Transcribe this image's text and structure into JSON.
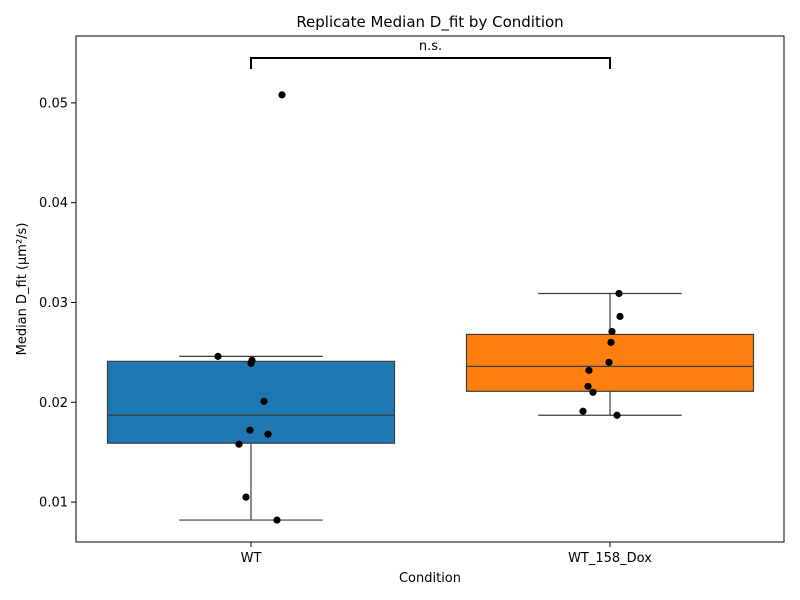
{
  "chart_data": {
    "type": "box",
    "title": "Replicate Median D_fit by Condition",
    "xlabel": "Condition",
    "ylabel": "Median D_fit (µm²/s)",
    "categories": [
      "WT",
      "WT_158_Dox"
    ],
    "ylim": [
      0.006,
      0.0567
    ],
    "yticks": [
      0.01,
      0.02,
      0.03,
      0.04,
      0.05
    ],
    "ytick_labels": [
      "0.01",
      "0.02",
      "0.03",
      "0.04",
      "0.05"
    ],
    "grid": false,
    "colors": {
      "WT": "#1f77b4",
      "WT_158_Dox": "#ff7f0e",
      "points": "#000000",
      "edge": "#3d3d3d"
    },
    "boxes": [
      {
        "category": "WT",
        "whisker_low": 0.0082,
        "q1": 0.0159,
        "median": 0.0187,
        "q3": 0.0241,
        "whisker_high": 0.0246
      },
      {
        "category": "WT_158_Dox",
        "whisker_low": 0.0187,
        "q1": 0.0211,
        "median": 0.0236,
        "q3": 0.0268,
        "whisker_high": 0.0309
      }
    ],
    "points": [
      {
        "category": "WT",
        "values": [
          0.0508,
          0.0246,
          0.0242,
          0.0239,
          0.0201,
          0.0172,
          0.0168,
          0.0158,
          0.0105,
          0.0082
        ],
        "jitter": [
          0.31,
          -0.33,
          0.01,
          0.0,
          0.13,
          -0.01,
          0.17,
          -0.12,
          -0.05,
          0.26
        ]
      },
      {
        "category": "WT_158_Dox",
        "values": [
          0.0309,
          0.0286,
          0.0271,
          0.026,
          0.024,
          0.0232,
          0.0216,
          0.021,
          0.0191,
          0.0187
        ],
        "jitter": [
          0.09,
          0.1,
          0.02,
          0.01,
          -0.01,
          -0.21,
          -0.22,
          -0.17,
          -0.27,
          0.07
        ]
      }
    ],
    "annotation": {
      "text": "n.s.",
      "from": "WT",
      "to": "WT_158_Dox",
      "y": 0.0545
    }
  }
}
